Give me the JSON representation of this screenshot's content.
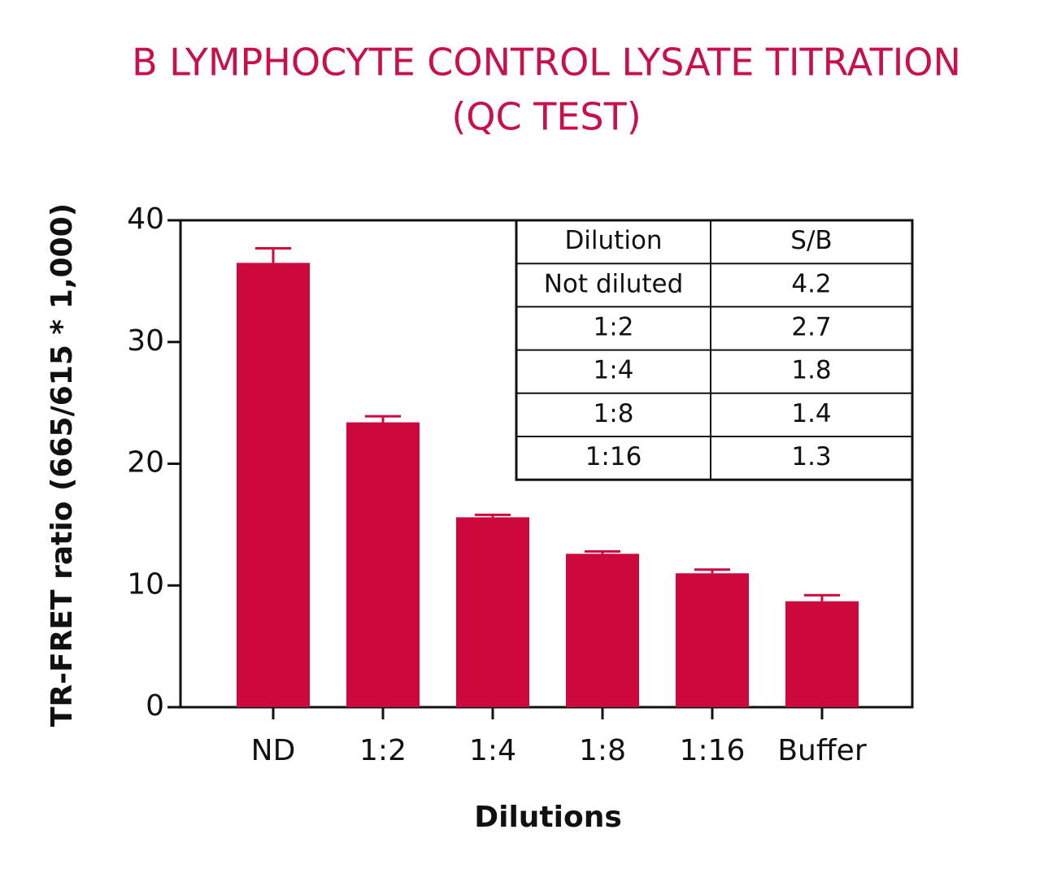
{
  "chart_data": {
    "type": "bar",
    "title": [
      "B LYMPHOCYTE CONTROL LYSATE TITRATION",
      "(QC TEST)"
    ],
    "x_label": "Dilutions",
    "y_label": "TR-FRET ratio (665/615 * 1,000)",
    "categories": [
      "ND",
      "1:2",
      "1:4",
      "1:8",
      "1:16",
      "Buffer"
    ],
    "values": [
      36.5,
      23.4,
      15.6,
      12.6,
      11.0,
      8.7
    ],
    "errors": [
      1.2,
      0.5,
      0.2,
      0.2,
      0.3,
      0.5
    ],
    "color": "#cc083c",
    "ylim": [
      0,
      40
    ],
    "yticks": [
      0,
      10,
      20,
      30,
      40
    ],
    "inset_table": {
      "header": [
        "Dilution",
        "S/B"
      ],
      "rows": [
        [
          "Not diluted",
          4.2
        ],
        [
          "1:2",
          2.7
        ],
        [
          "1:4",
          1.8
        ],
        [
          "1:8",
          1.4
        ],
        [
          "1:16",
          1.3
        ]
      ]
    }
  }
}
